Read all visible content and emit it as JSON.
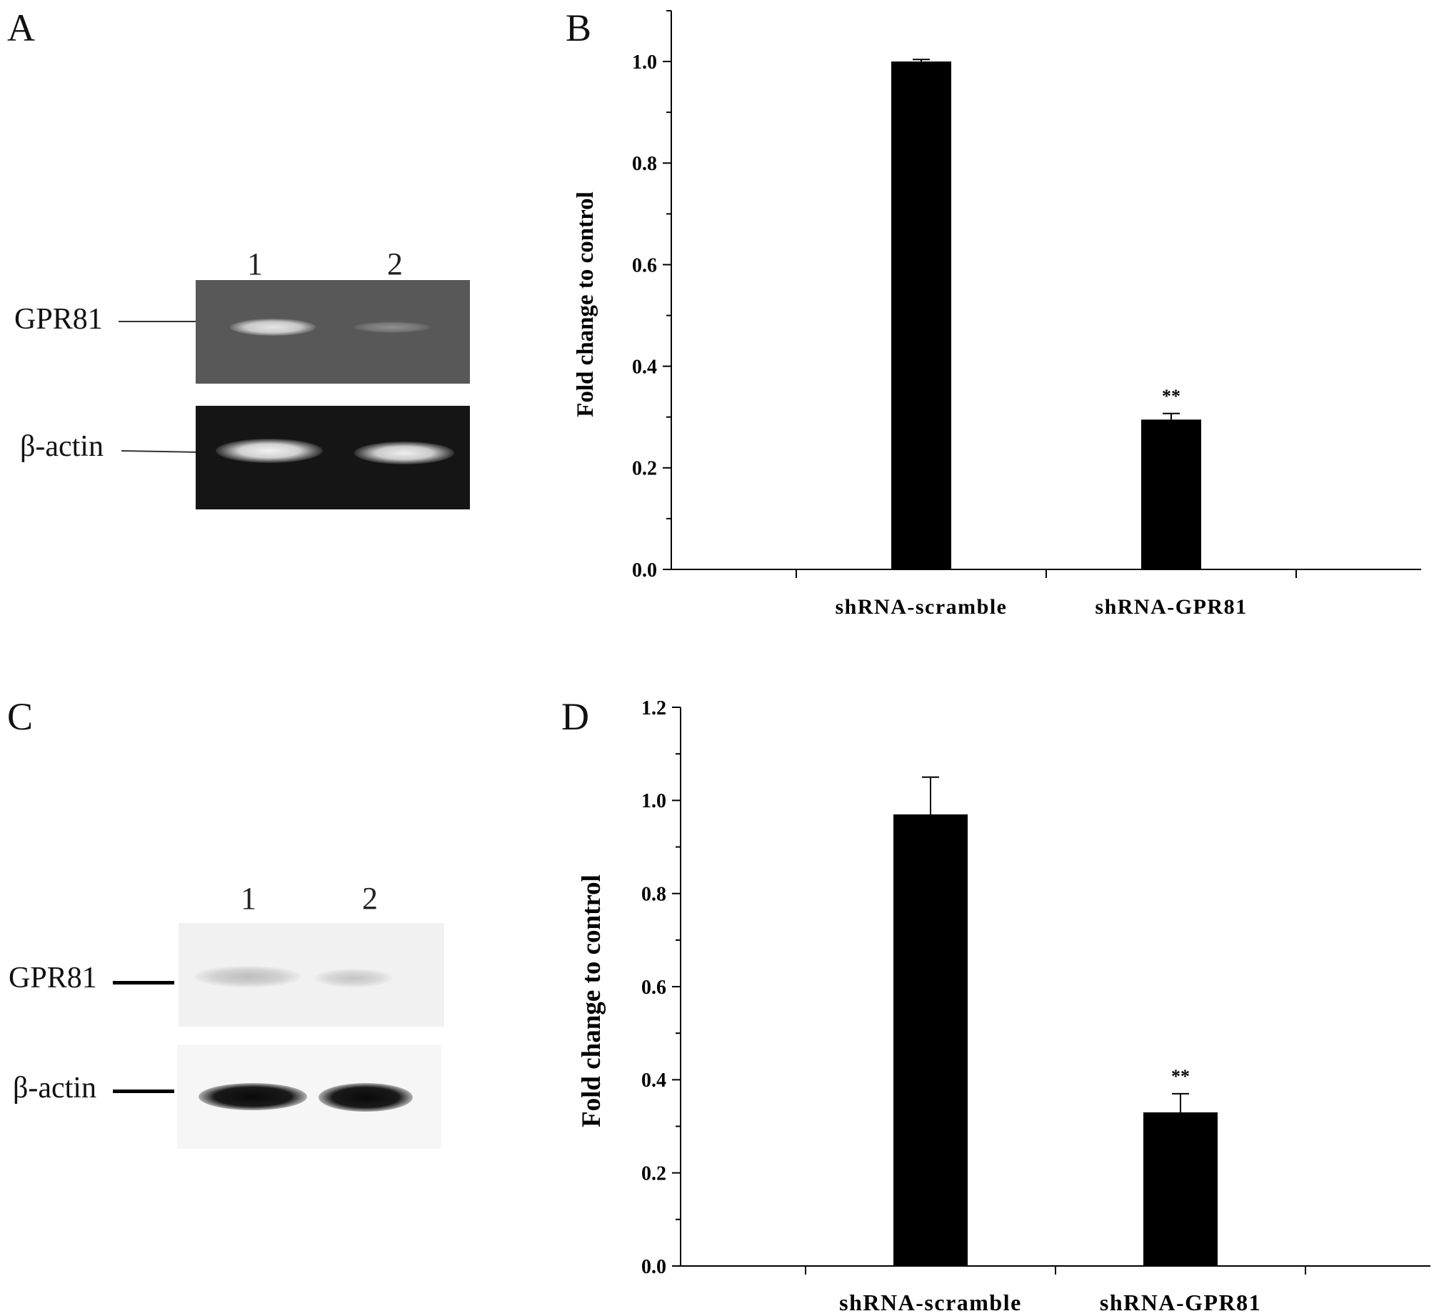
{
  "panels": {
    "A": {
      "letter": "A",
      "lanes": [
        "1",
        "2"
      ],
      "bands": [
        "GPR81",
        "β-actin"
      ]
    },
    "C": {
      "letter": "C",
      "lanes": [
        "1",
        "2"
      ],
      "bands": [
        "GPR81",
        "β-actin"
      ]
    },
    "B": {
      "letter": "B"
    },
    "D": {
      "letter": "D"
    }
  },
  "chart_data": [
    {
      "panel": "B",
      "type": "bar",
      "categories": [
        "shRNA-scramble",
        "shRNA-GPR81"
      ],
      "values": [
        1.0,
        0.295
      ],
      "errors": [
        0.004,
        0.012
      ],
      "annotations": [
        "",
        "**"
      ],
      "title": "",
      "xlabel": "",
      "ylabel": "Fold change to control",
      "ylim": [
        0,
        1.1
      ],
      "yticks": [
        0.0,
        0.2,
        0.4,
        0.6,
        0.8,
        1.0
      ],
      "ytick_labels": [
        "0.0",
        "0.2",
        "0.4",
        "0.6",
        "0.8",
        "1.0"
      ],
      "bar_color": "#000000",
      "grid": false,
      "legend": "none"
    },
    {
      "panel": "D",
      "type": "bar",
      "categories": [
        "shRNA-scramble",
        "shRNA-GPR81"
      ],
      "values": [
        0.97,
        0.33
      ],
      "errors": [
        0.08,
        0.04
      ],
      "annotations": [
        "",
        "**"
      ],
      "title": "",
      "xlabel": "",
      "ylabel": "Fold change to control",
      "ylim": [
        0,
        1.2
      ],
      "yticks": [
        0.0,
        0.2,
        0.4,
        0.6,
        0.8,
        1.0,
        1.2
      ],
      "ytick_labels": [
        "0.0",
        "0.2",
        "0.4",
        "0.6",
        "0.8",
        "1.0",
        "1.2"
      ],
      "bar_color": "#000000",
      "grid": false,
      "legend": "none"
    }
  ]
}
